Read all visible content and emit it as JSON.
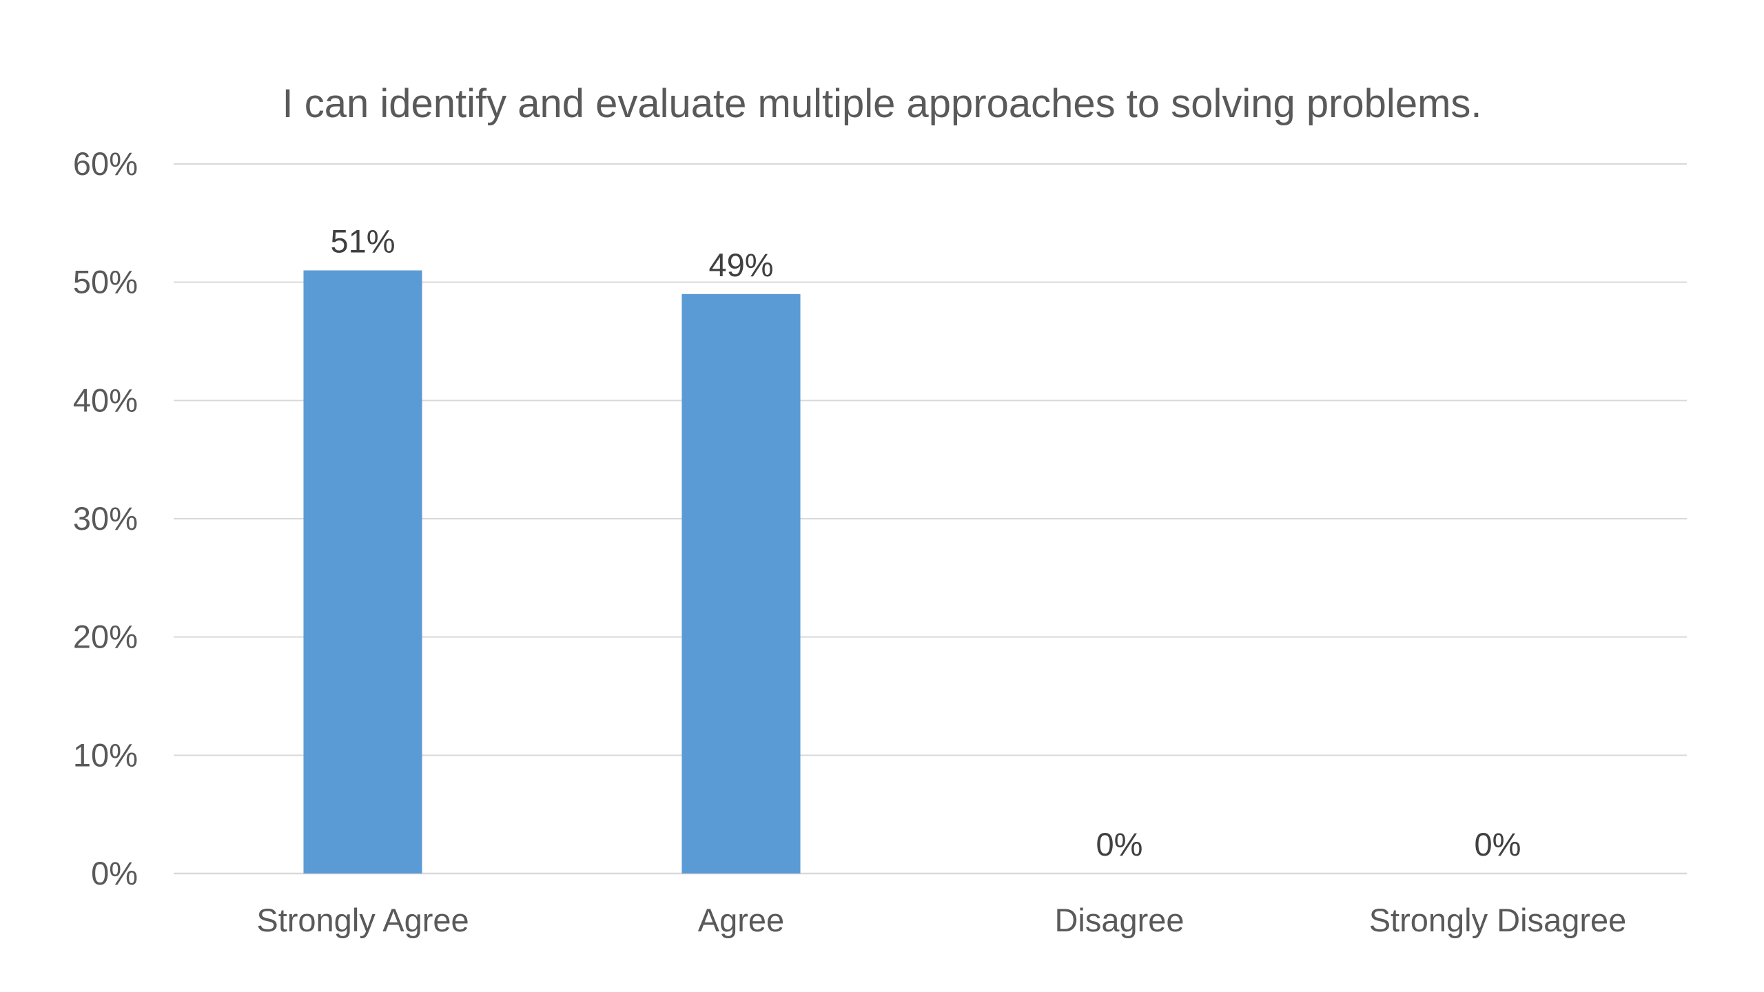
{
  "chart_data": {
    "type": "bar",
    "title": "I can identify and evaluate multiple approaches to solving problems.",
    "categories": [
      "Strongly Agree",
      "Agree",
      "Disagree",
      "Strongly Disagree"
    ],
    "values": [
      51,
      49,
      0,
      0
    ],
    "data_labels": [
      "51%",
      "49%",
      "0%",
      "0%"
    ],
    "y_ticks": [
      0,
      10,
      20,
      30,
      40,
      50,
      60
    ],
    "y_tick_labels": [
      "0%",
      "10%",
      "20%",
      "30%",
      "40%",
      "50%",
      "60%"
    ],
    "ylim": [
      0,
      60
    ],
    "xlabel": "",
    "ylabel": "",
    "grid": true,
    "legend": "none",
    "colors": {
      "bar": "#5b9bd5",
      "grid": "#d9d9d9",
      "text": "#595959",
      "data_label": "#404040"
    }
  }
}
